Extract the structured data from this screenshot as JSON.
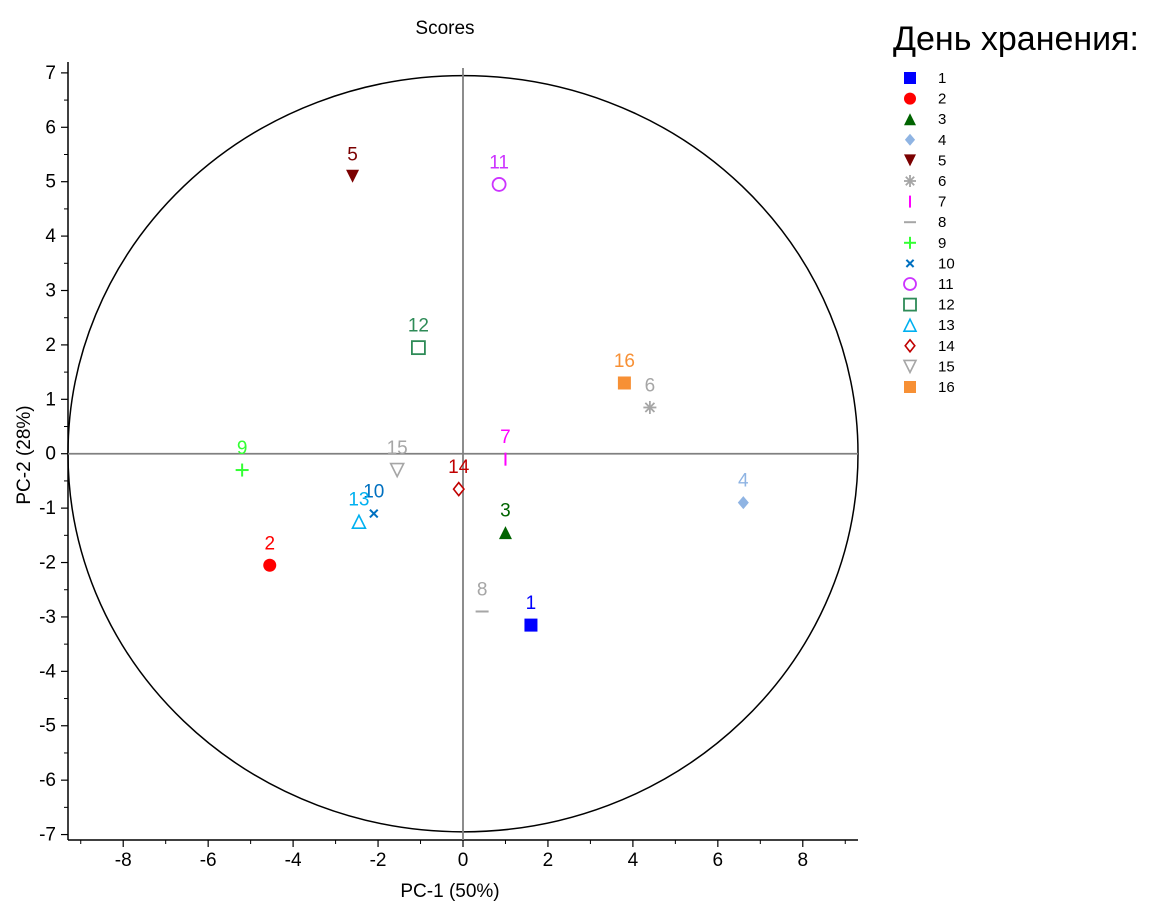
{
  "chart_data": {
    "type": "scatter",
    "title": "Scores",
    "xlabel": "PC-1 (50%)",
    "ylabel": "PC-2 (28%)",
    "xlim": [
      -9.3,
      9.3
    ],
    "ylim": [
      -7.1,
      7.2
    ],
    "xticks": [
      -8,
      -6,
      -4,
      -2,
      0,
      2,
      4,
      6,
      8
    ],
    "yticks": [
      -7,
      -6,
      -5,
      -4,
      -3,
      -2,
      -1,
      0,
      1,
      2,
      3,
      4,
      5,
      6,
      7
    ],
    "circle": {
      "center": [
        0,
        0
      ],
      "radius": 9.3
    },
    "legend_title": "День хранения:",
    "legend_position": "right",
    "series": [
      {
        "name": "1",
        "marker": "square-filled",
        "color": "#0000ff",
        "x": 1.6,
        "y": -3.15
      },
      {
        "name": "2",
        "marker": "circle-filled",
        "color": "#ff0000",
        "x": -4.55,
        "y": -2.05
      },
      {
        "name": "3",
        "marker": "triangle-filled",
        "color": "#006400",
        "x": 1.0,
        "y": -1.45
      },
      {
        "name": "4",
        "marker": "diamond-filled",
        "color": "#8fb4e3",
        "x": 6.6,
        "y": -0.9
      },
      {
        "name": "5",
        "marker": "tri-down-filled",
        "color": "#7b0000",
        "x": -2.6,
        "y": 5.1
      },
      {
        "name": "6",
        "marker": "asterisk",
        "color": "#a6a6a6",
        "x": 4.4,
        "y": 0.85
      },
      {
        "name": "7",
        "marker": "vline",
        "color": "#ff00ff",
        "x": 1.0,
        "y": -0.1
      },
      {
        "name": "8",
        "marker": "hline",
        "color": "#a6a6a6",
        "x": 0.45,
        "y": -2.9
      },
      {
        "name": "9",
        "marker": "plus",
        "color": "#33ff33",
        "x": -5.2,
        "y": -0.3
      },
      {
        "name": "10",
        "marker": "x",
        "color": "#0070c0",
        "x": -2.1,
        "y": -1.1
      },
      {
        "name": "11",
        "marker": "circle-open",
        "color": "#cc33ff",
        "x": 0.85,
        "y": 4.95
      },
      {
        "name": "12",
        "marker": "square-open",
        "color": "#2e8b57",
        "x": -1.05,
        "y": 1.95
      },
      {
        "name": "13",
        "marker": "triangle-open",
        "color": "#00b0f0",
        "x": -2.45,
        "y": -1.25
      },
      {
        "name": "14",
        "marker": "diamond-open",
        "color": "#c00000",
        "x": -0.1,
        "y": -0.65
      },
      {
        "name": "15",
        "marker": "tri-down-open",
        "color": "#a6a6a6",
        "x": -1.55,
        "y": -0.3
      },
      {
        "name": "16",
        "marker": "square-filled",
        "color": "#f79035",
        "x": 3.8,
        "y": 1.3
      }
    ]
  }
}
